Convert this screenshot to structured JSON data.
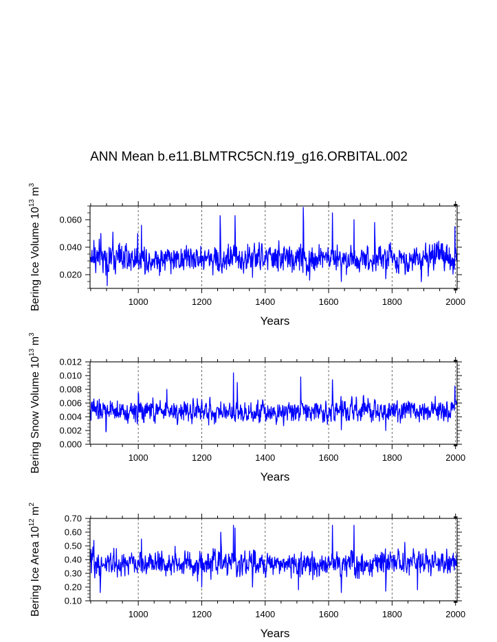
{
  "colors": {
    "series": "#0000ff",
    "axis": "#000000",
    "grid": "#555555"
  },
  "title": "ANN Mean b.e11.BLMTRC5CN.f19_g16.ORBITAL.002",
  "chart_data": [
    {
      "type": "line",
      "name": "ice-volume",
      "title": "ANN Mean b.e11.BLMTRC5CN.f19_g16.ORBITAL.002",
      "xlabel": "Years",
      "ylabel_main": "Bering Ice Volume 10",
      "ylabel_exp": "13",
      "ylabel_unit": " m",
      "ylabel_unit_exp": "3",
      "xlim": [
        848,
        2005
      ],
      "ylim": [
        0.01,
        0.07
      ],
      "xticks": [
        1000,
        1200,
        1400,
        1600,
        1800,
        2000
      ],
      "yticks": [
        0.02,
        0.04,
        0.06
      ],
      "ytick_labels": [
        "0.020",
        "0.040",
        "0.060"
      ],
      "grid_x": [
        1000,
        1200,
        1400,
        1600,
        1800,
        2000
      ],
      "series_summary": {
        "start_year": 850,
        "end_year": 2005,
        "mean": 0.032,
        "min": 0.012,
        "max": 0.069
      },
      "peaks": [
        [
          860,
          0.045
        ],
        [
          882,
          0.05
        ],
        [
          902,
          0.012
        ],
        [
          920,
          0.051
        ],
        [
          998,
          0.05
        ],
        [
          1010,
          0.056
        ],
        [
          1258,
          0.063
        ],
        [
          1305,
          0.063
        ],
        [
          1360,
          0.018
        ],
        [
          1520,
          0.069
        ],
        [
          1540,
          0.016
        ],
        [
          1612,
          0.065
        ],
        [
          1640,
          0.015
        ],
        [
          1680,
          0.06
        ],
        [
          1745,
          0.058
        ],
        [
          1780,
          0.017
        ],
        [
          1998,
          0.055
        ]
      ]
    },
    {
      "type": "line",
      "name": "snow-volume",
      "xlabel": "Years",
      "ylabel_main": "Bering Snow Volume 10",
      "ylabel_exp": "13",
      "ylabel_unit": " m",
      "ylabel_unit_exp": "3",
      "xlim": [
        848,
        2005
      ],
      "ylim": [
        0.0,
        0.012
      ],
      "xticks": [
        1000,
        1200,
        1400,
        1600,
        1800,
        2000
      ],
      "yticks": [
        0.0,
        0.002,
        0.004,
        0.006,
        0.008,
        0.01,
        0.012
      ],
      "ytick_labels": [
        "0.000",
        "0.002",
        "0.004",
        "0.006",
        "0.008",
        "0.010",
        "0.012"
      ],
      "grid_x": [
        1000,
        1200,
        1400,
        1600,
        1800,
        2000
      ],
      "series_summary": {
        "start_year": 850,
        "end_year": 2005,
        "mean": 0.0048,
        "min": 0.0018,
        "max": 0.0104
      },
      "peaks": [
        [
          860,
          0.0066
        ],
        [
          898,
          0.0018
        ],
        [
          1000,
          0.0075
        ],
        [
          1090,
          0.008
        ],
        [
          1200,
          0.0065
        ],
        [
          1300,
          0.0104
        ],
        [
          1312,
          0.009
        ],
        [
          1512,
          0.0098
        ],
        [
          1612,
          0.0094
        ],
        [
          1640,
          0.0021
        ],
        [
          1780,
          0.002
        ],
        [
          1998,
          0.0085
        ]
      ]
    },
    {
      "type": "line",
      "name": "ice-area",
      "xlabel": "Years",
      "ylabel_main": "Bering Ice Area 10",
      "ylabel_exp": "12",
      "ylabel_unit": " m",
      "ylabel_unit_exp": "2",
      "xlim": [
        848,
        2005
      ],
      "ylim": [
        0.1,
        0.7
      ],
      "xticks": [
        1000,
        1200,
        1400,
        1600,
        1800,
        2000
      ],
      "yticks": [
        0.1,
        0.2,
        0.3,
        0.4,
        0.5,
        0.6,
        0.7
      ],
      "ytick_labels": [
        "0.10",
        "0.20",
        "0.30",
        "0.40",
        "0.50",
        "0.60",
        "0.70"
      ],
      "grid_x": [
        1000,
        1200,
        1400,
        1600,
        1800,
        2000
      ],
      "series_summary": {
        "start_year": 850,
        "end_year": 2005,
        "mean": 0.37,
        "min": 0.16,
        "max": 0.65
      },
      "peaks": [
        [
          860,
          0.54
        ],
        [
          880,
          0.16
        ],
        [
          1010,
          0.55
        ],
        [
          1200,
          0.2
        ],
        [
          1260,
          0.6
        ],
        [
          1300,
          0.65
        ],
        [
          1305,
          0.63
        ],
        [
          1360,
          0.2
        ],
        [
          1505,
          0.18
        ],
        [
          1612,
          0.65
        ],
        [
          1640,
          0.16
        ],
        [
          1680,
          0.65
        ],
        [
          1780,
          0.17
        ],
        [
          1880,
          0.18
        ]
      ]
    }
  ]
}
